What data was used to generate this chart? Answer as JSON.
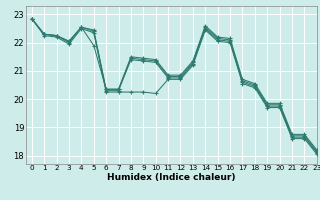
{
  "xlabel": "Humidex (Indice chaleur)",
  "xlim": [
    -0.5,
    23
  ],
  "ylim": [
    17.7,
    23.3
  ],
  "yticks": [
    18,
    19,
    20,
    21,
    22,
    23
  ],
  "xticks": [
    0,
    1,
    2,
    3,
    4,
    5,
    6,
    7,
    8,
    9,
    10,
    11,
    12,
    13,
    14,
    15,
    16,
    17,
    18,
    19,
    20,
    21,
    22,
    23
  ],
  "bg_color": "#ceecea",
  "grid_color": "#ffffff",
  "line_color": "#2d7a6e",
  "lines": [
    [
      22.85,
      22.3,
      22.25,
      22.05,
      22.55,
      21.9,
      20.35,
      20.35,
      21.5,
      21.45,
      21.4,
      20.85,
      20.85,
      21.35,
      22.6,
      22.2,
      22.15,
      20.7,
      20.55,
      19.85,
      19.85,
      18.75,
      18.75,
      18.2
    ],
    [
      22.85,
      22.3,
      22.25,
      22.05,
      22.55,
      22.45,
      20.35,
      20.35,
      21.45,
      21.4,
      21.35,
      20.8,
      20.8,
      21.3,
      22.55,
      22.15,
      22.1,
      20.65,
      20.5,
      19.8,
      19.8,
      18.7,
      18.7,
      18.15
    ],
    [
      22.85,
      22.3,
      22.25,
      22.0,
      22.55,
      22.4,
      20.3,
      20.3,
      21.4,
      21.35,
      21.3,
      20.75,
      20.75,
      21.25,
      22.5,
      22.1,
      22.05,
      20.6,
      20.45,
      19.75,
      19.75,
      18.65,
      18.65,
      18.1
    ],
    [
      22.85,
      22.25,
      22.2,
      21.95,
      22.5,
      22.35,
      20.25,
      20.25,
      20.25,
      20.25,
      20.2,
      20.7,
      20.7,
      21.2,
      22.45,
      22.05,
      22.0,
      20.55,
      20.4,
      19.7,
      19.7,
      18.6,
      18.6,
      18.05
    ]
  ]
}
